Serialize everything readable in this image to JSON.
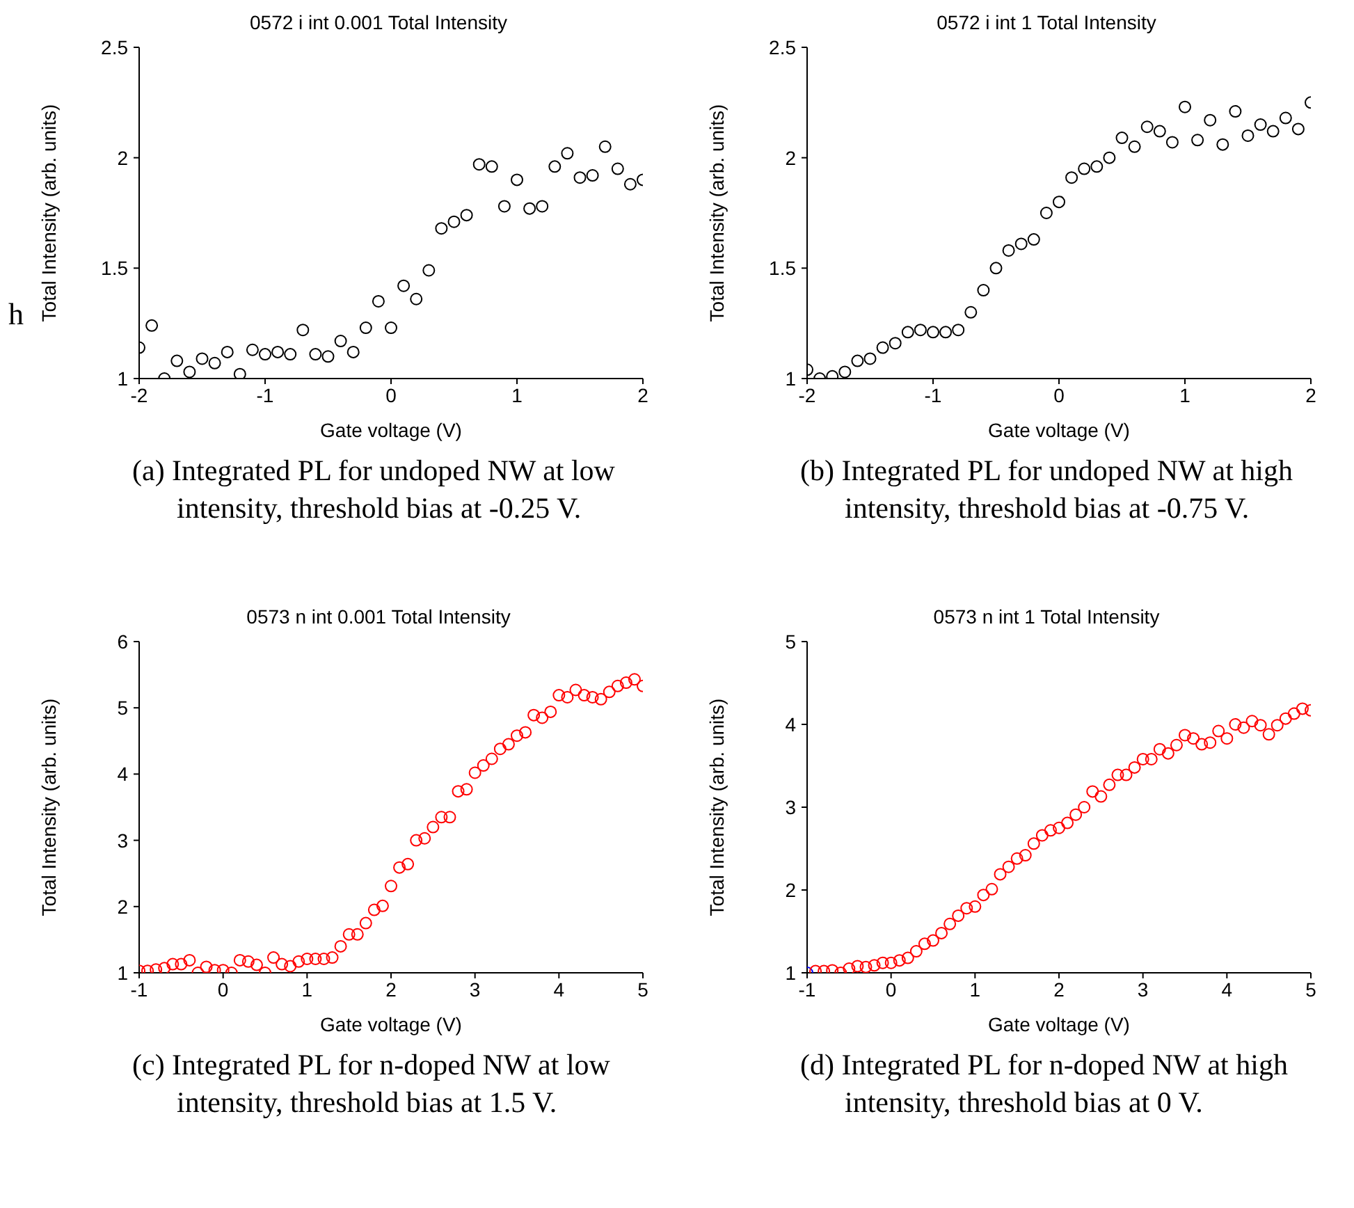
{
  "chart_data": [
    {
      "type": "scatter",
      "title": "0572 i int 0.001  Total Intensity",
      "xlabel": "Gate voltage (V)",
      "ylabel": "Total Intensity (arb. units)",
      "xlim": [
        -2,
        2
      ],
      "xticks": [
        -2,
        -1,
        0,
        1,
        2
      ],
      "ylim": [
        1,
        2.5
      ],
      "yticks": [
        1,
        1.5,
        2,
        2.5
      ],
      "marker": "circle",
      "annotations": [
        "(a) Integrated PL for undoped NW at low intensity, threshold bias at -0.25 V.",
        "h"
      ],
      "x": [
        -2,
        -1.9,
        -1.8,
        -1.7,
        -1.6,
        -1.5,
        -1.4,
        -1.3,
        -1.2,
        -1.1,
        -1,
        -0.9,
        -0.8,
        -0.7,
        -0.6,
        -0.5,
        -0.4,
        -0.3,
        -0.2,
        -0.1,
        0,
        0.1,
        0.2,
        0.3,
        0.4,
        0.5,
        0.6,
        0.7,
        0.8,
        0.9,
        1,
        1.1,
        1.2,
        1.3,
        1.4,
        1.5,
        1.6,
        1.7,
        1.8,
        1.9,
        2
      ],
      "series": [
        {
          "color": "#000000",
          "values": [
            1.14,
            1.24,
            1.0,
            1.08,
            1.03,
            1.09,
            1.07,
            1.12,
            1.02,
            1.13,
            1.11,
            1.12,
            1.11,
            1.22,
            1.11,
            1.1,
            1.17,
            1.12,
            1.23,
            1.35,
            1.23,
            1.42,
            1.36,
            1.49,
            1.68,
            1.71,
            1.74,
            1.97,
            1.96,
            1.78,
            1.9,
            1.77,
            1.78,
            1.96,
            2.02,
            1.91,
            1.92,
            2.05,
            1.95,
            1.88,
            1.9
          ]
        }
      ]
    },
    {
      "type": "scatter",
      "title": "0572 i int 1  Total Intensity",
      "xlabel": "Gate voltage (V)",
      "ylabel": "Total Intensity (arb. units)",
      "xlim": [
        -2,
        2
      ],
      "xticks": [
        -2,
        -1,
        0,
        1,
        2
      ],
      "ylim": [
        1,
        2.5
      ],
      "yticks": [
        1,
        1.5,
        2,
        2.5
      ],
      "marker": "circle",
      "annotations": [
        "(b) Integrated PL for undoped NW at high intensity, threshold bias at -0.75 V."
      ],
      "x": [
        -2,
        -1.9,
        -1.8,
        -1.7,
        -1.6,
        -1.5,
        -1.4,
        -1.3,
        -1.2,
        -1.1,
        -1,
        -0.9,
        -0.8,
        -0.7,
        -0.6,
        -0.5,
        -0.4,
        -0.3,
        -0.2,
        -0.1,
        0,
        0.1,
        0.2,
        0.3,
        0.4,
        0.5,
        0.6,
        0.7,
        0.8,
        0.9,
        1,
        1.1,
        1.2,
        1.3,
        1.4,
        1.5,
        1.6,
        1.7,
        1.8,
        1.9,
        2
      ],
      "series": [
        {
          "color": "#000000",
          "values": [
            1.04,
            1.0,
            1.01,
            1.03,
            1.08,
            1.09,
            1.14,
            1.16,
            1.21,
            1.22,
            1.21,
            1.21,
            1.22,
            1.3,
            1.4,
            1.5,
            1.58,
            1.61,
            1.63,
            1.75,
            1.8,
            1.91,
            1.95,
            1.96,
            2.0,
            2.09,
            2.05,
            2.14,
            2.12,
            2.07,
            2.23,
            2.08,
            2.17,
            2.06,
            2.21,
            2.1,
            2.15,
            2.12,
            2.18,
            2.13,
            2.25
          ]
        }
      ]
    },
    {
      "type": "scatter",
      "title": "0573 n int 0.001  Total Intensity",
      "xlabel": "Gate voltage (V)",
      "ylabel": "Total Intensity (arb. units)",
      "xlim": [
        -1,
        5
      ],
      "xticks": [
        -1,
        0,
        1,
        2,
        3,
        4,
        5
      ],
      "ylim": [
        1,
        6
      ],
      "yticks": [
        1,
        2,
        3,
        4,
        5,
        6
      ],
      "marker": "circle",
      "annotations": [
        "(c) Integrated PL for n-doped NW at low intensity, threshold bias at 1.5 V."
      ],
      "x": [
        -1,
        -0.9,
        -0.8,
        -0.7,
        -0.6,
        -0.5,
        -0.4,
        -0.3,
        -0.2,
        -0.1,
        0,
        0.1,
        0.2,
        0.3,
        0.4,
        0.5,
        0.6,
        0.7,
        0.8,
        0.9,
        1,
        1.1,
        1.2,
        1.3,
        1.4,
        1.5,
        1.6,
        1.7,
        1.8,
        1.9,
        2,
        2.1,
        2.2,
        2.3,
        2.4,
        2.5,
        2.6,
        2.7,
        2.8,
        2.9,
        3,
        3.1,
        3.2,
        3.3,
        3.4,
        3.5,
        3.6,
        3.7,
        3.8,
        3.9,
        4,
        4.1,
        4.2,
        4.3,
        4.4,
        4.5,
        4.6,
        4.7,
        4.8,
        4.9,
        5
      ],
      "series": [
        {
          "color": "#ff0000",
          "values": [
            1.03,
            1.03,
            1.05,
            1.07,
            1.13,
            1.13,
            1.19,
            1.0,
            1.09,
            1.04,
            1.04,
            1.0,
            1.19,
            1.17,
            1.12,
            1.0,
            1.23,
            1.13,
            1.1,
            1.17,
            1.21,
            1.21,
            1.21,
            1.23,
            1.4,
            1.58,
            1.58,
            1.75,
            1.95,
            2.01,
            2.31,
            2.59,
            2.64,
            3.0,
            3.03,
            3.2,
            3.35,
            3.35,
            3.74,
            3.77,
            4.02,
            4.13,
            4.23,
            4.38,
            4.45,
            4.58,
            4.63,
            4.89,
            4.85,
            4.94,
            5.19,
            5.16,
            5.27,
            5.19,
            5.16,
            5.13,
            5.24,
            5.33,
            5.38,
            5.43,
            5.33
          ]
        }
      ]
    },
    {
      "type": "scatter",
      "title": "0573 n int 1  Total Intensity",
      "xlabel": "Gate voltage (V)",
      "ylabel": "Total Intensity (arb. units)",
      "xlim": [
        -1,
        5
      ],
      "xticks": [
        -1,
        0,
        1,
        2,
        3,
        4,
        5
      ],
      "ylim": [
        1,
        5
      ],
      "yticks": [
        1,
        2,
        3,
        4,
        5
      ],
      "marker": "circle",
      "annotations": [
        "(d) Integrated PL for n-doped NW at high intensity, threshold bias at 0 V."
      ],
      "x": [
        -1,
        -0.9,
        -0.8,
        -0.7,
        -0.6,
        -0.5,
        -0.4,
        -0.3,
        -0.2,
        -0.1,
        0,
        0.1,
        0.2,
        0.3,
        0.4,
        0.5,
        0.6,
        0.7,
        0.8,
        0.9,
        1,
        1.1,
        1.2,
        1.3,
        1.4,
        1.5,
        1.6,
        1.7,
        1.8,
        1.9,
        2,
        2.1,
        2.2,
        2.3,
        2.4,
        2.5,
        2.6,
        2.7,
        2.8,
        2.9,
        3,
        3.1,
        3.2,
        3.3,
        3.4,
        3.5,
        3.6,
        3.7,
        3.8,
        3.9,
        4,
        4.1,
        4.2,
        4.3,
        4.4,
        4.5,
        4.6,
        4.7,
        4.8,
        4.9,
        5
      ],
      "series": [
        {
          "color": "#ff0000",
          "colors": [
            "#0000ff",
            "#ff0000",
            "#ff0000",
            "#ff0000",
            "#ff0000",
            "#ff0000",
            "#ff0000",
            "#ff0000",
            "#ff0000",
            "#ff0000",
            "#ff0000",
            "#ff0000",
            "#ff0000",
            "#ff0000",
            "#ff0000",
            "#ff0000",
            "#ff0000",
            "#ff0000",
            "#ff0000",
            "#ff0000",
            "#ff0000",
            "#ff0000",
            "#ff0000",
            "#ff0000",
            "#ff0000",
            "#ff0000",
            "#ff0000",
            "#ff0000",
            "#ff0000",
            "#ff0000",
            "#ff0000",
            "#ff0000",
            "#ff0000",
            "#ff0000",
            "#ff0000",
            "#ff0000",
            "#ff0000",
            "#ff0000",
            "#ff0000",
            "#ff0000",
            "#ff0000",
            "#ff0000",
            "#ff0000",
            "#ff0000",
            "#ff0000",
            "#ff0000",
            "#ff0000",
            "#ff0000",
            "#ff0000",
            "#ff0000",
            "#ff0000",
            "#ff0000",
            "#ff0000",
            "#ff0000",
            "#ff0000",
            "#ff0000",
            "#ff0000",
            "#ff0000",
            "#ff0000",
            "#ff0000",
            "#ff0000"
          ],
          "values": [
            1.0,
            1.02,
            1.02,
            1.03,
            1.0,
            1.05,
            1.08,
            1.07,
            1.09,
            1.12,
            1.12,
            1.15,
            1.18,
            1.26,
            1.35,
            1.39,
            1.48,
            1.59,
            1.69,
            1.78,
            1.8,
            1.94,
            2.01,
            2.19,
            2.28,
            2.38,
            2.42,
            2.56,
            2.66,
            2.72,
            2.75,
            2.81,
            2.91,
            3.0,
            3.19,
            3.13,
            3.27,
            3.39,
            3.39,
            3.48,
            3.58,
            3.58,
            3.7,
            3.65,
            3.75,
            3.87,
            3.83,
            3.76,
            3.78,
            3.92,
            3.83,
            4.0,
            3.96,
            4.04,
            3.99,
            3.88,
            3.99,
            4.07,
            4.13,
            4.19,
            4.17
          ]
        }
      ]
    }
  ]
}
